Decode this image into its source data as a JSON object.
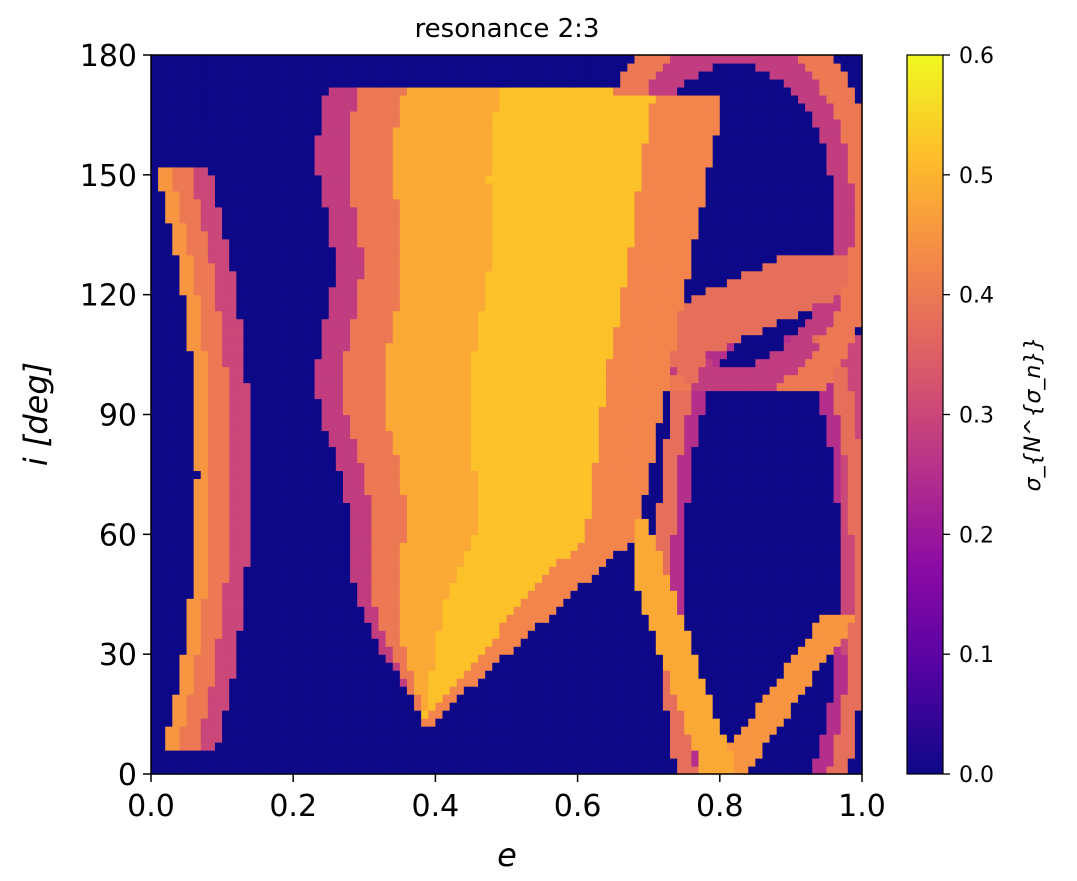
{
  "chart_data": {
    "type": "heatmap",
    "title": "resonance 2:3",
    "xlabel": "e",
    "ylabel": "i [deg]",
    "colorbar_label": "σ_{N^{σ_n}}",
    "xlim": [
      0.0,
      1.0
    ],
    "ylim": [
      0,
      180
    ],
    "x_ticks": [
      "0.0",
      "0.2",
      "0.4",
      "0.6",
      "0.8",
      "1.0"
    ],
    "y_ticks": [
      "0",
      "30",
      "60",
      "90",
      "120",
      "150",
      "180"
    ],
    "colorbar_range": [
      0.0,
      0.6
    ],
    "colorbar_ticks": [
      "0.0",
      "0.1",
      "0.2",
      "0.3",
      "0.4",
      "0.5",
      "0.6"
    ],
    "colormap": "plasma",
    "colormap_stops": [
      "#0d0887",
      "#5302a3",
      "#8b0aa5",
      "#b83289",
      "#db5c68",
      "#f48849",
      "#febd2a",
      "#f0f921"
    ],
    "grid": {
      "e_bins": 100,
      "i_bins": 90
    },
    "values_description_regions": [
      {
        "e": [
          0.01,
          0.14
        ],
        "i": [
          5,
          150
        ],
        "value": 0.45
      },
      {
        "e": [
          0.25,
          0.8
        ],
        "i": [
          0,
          175
        ],
        "value": 0.48
      },
      {
        "e": [
          0.67,
          0.85
        ],
        "i": [
          0,
          65
        ],
        "value": 0.3
      },
      {
        "e": [
          0.8,
          1.0
        ],
        "i": [
          0,
          180
        ],
        "value": 0.28
      }
    ]
  }
}
